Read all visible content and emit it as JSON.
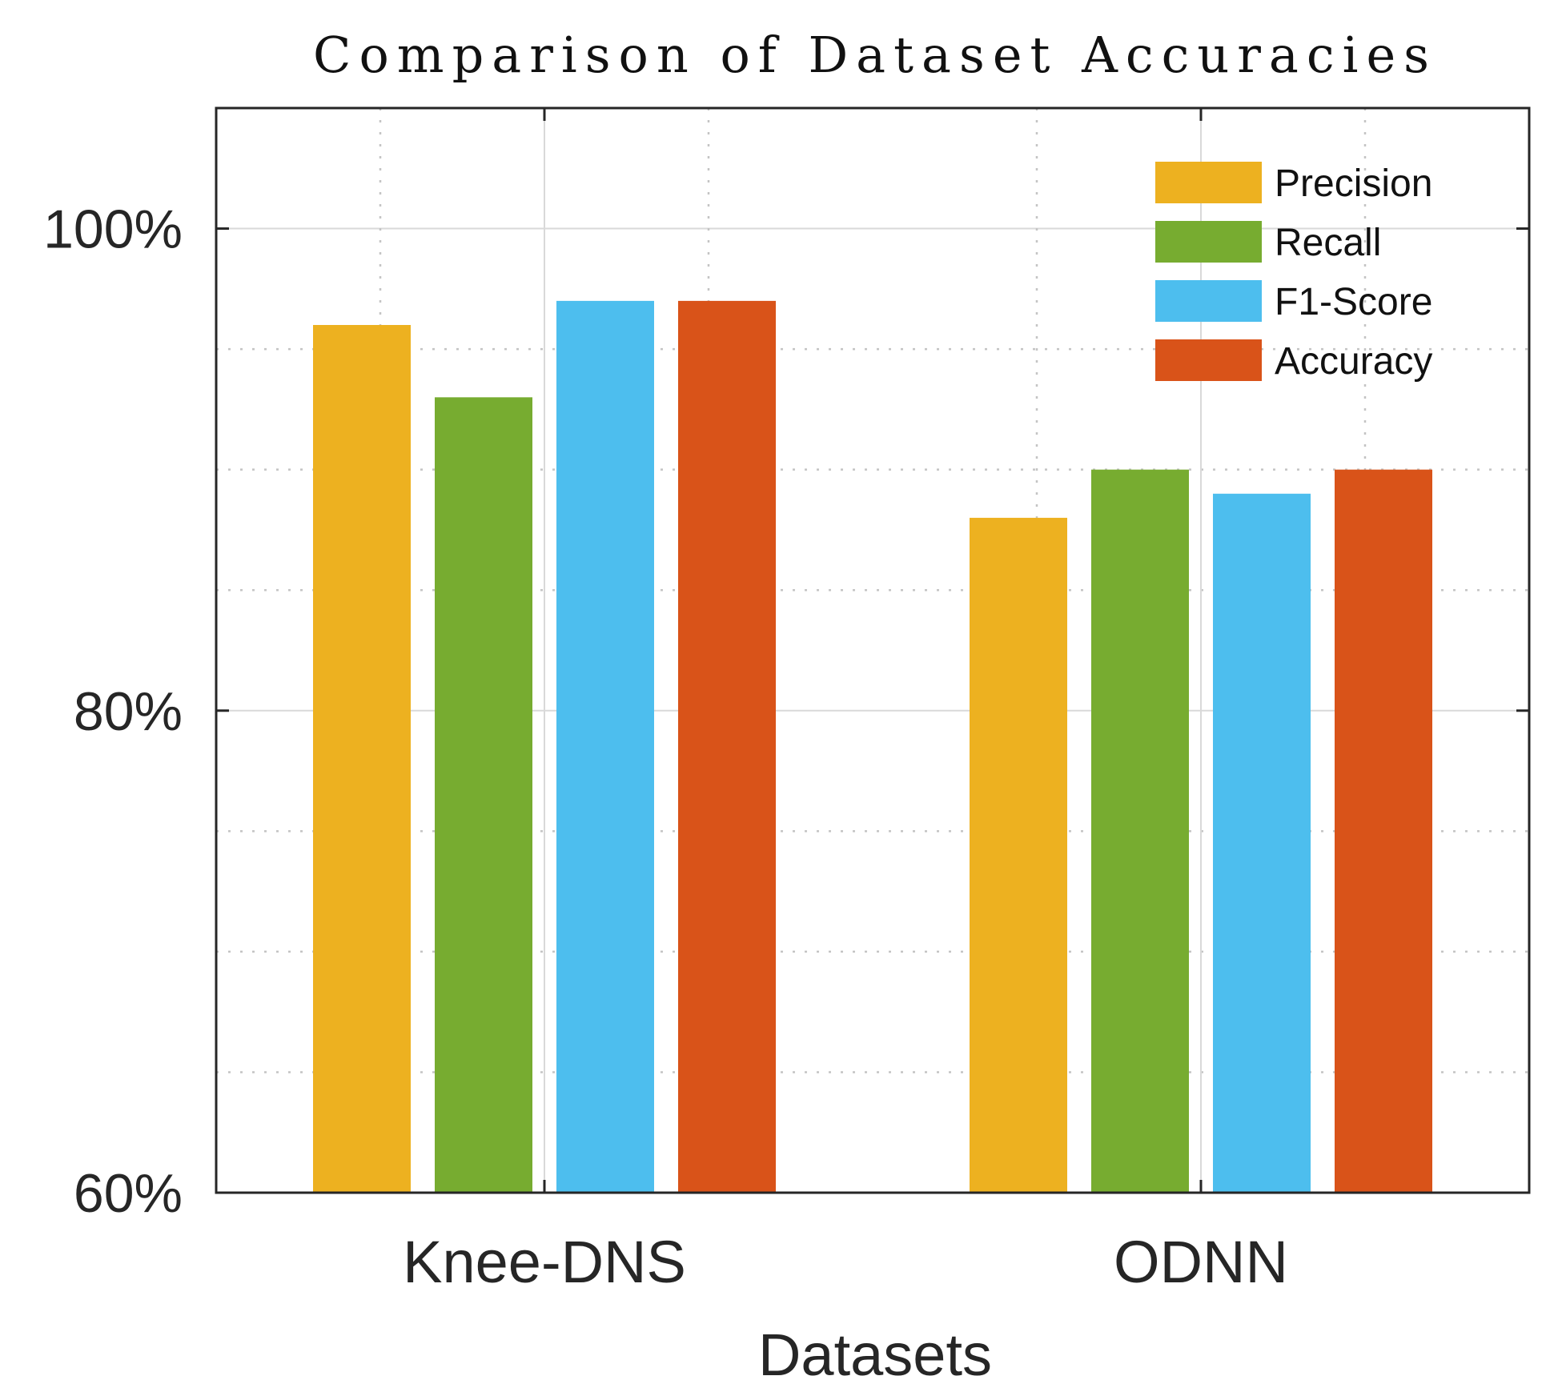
{
  "chart_data": {
    "type": "bar",
    "title": "Comparison of Dataset Accuracies",
    "xlabel": "Datasets",
    "ylabel": "",
    "categories": [
      "Knee-DNS",
      "ODNN"
    ],
    "series": [
      {
        "name": "Precision",
        "values": [
          96,
          88
        ],
        "color": "#EDB120"
      },
      {
        "name": "Recall",
        "values": [
          93,
          90
        ],
        "color": "#77AC30"
      },
      {
        "name": "F1-Score",
        "values": [
          97,
          89
        ],
        "color": "#4DBEEE"
      },
      {
        "name": "Accuracy",
        "values": [
          97,
          90
        ],
        "color": "#D95319"
      }
    ],
    "ylim": [
      60,
      105
    ],
    "yticks": [
      60,
      80,
      100
    ],
    "ytick_labels": [
      "60%",
      "80%",
      "100%"
    ],
    "minor_yticks": [
      65,
      70,
      75,
      85,
      90,
      95
    ],
    "grid": true,
    "legend_position": "top-right"
  }
}
